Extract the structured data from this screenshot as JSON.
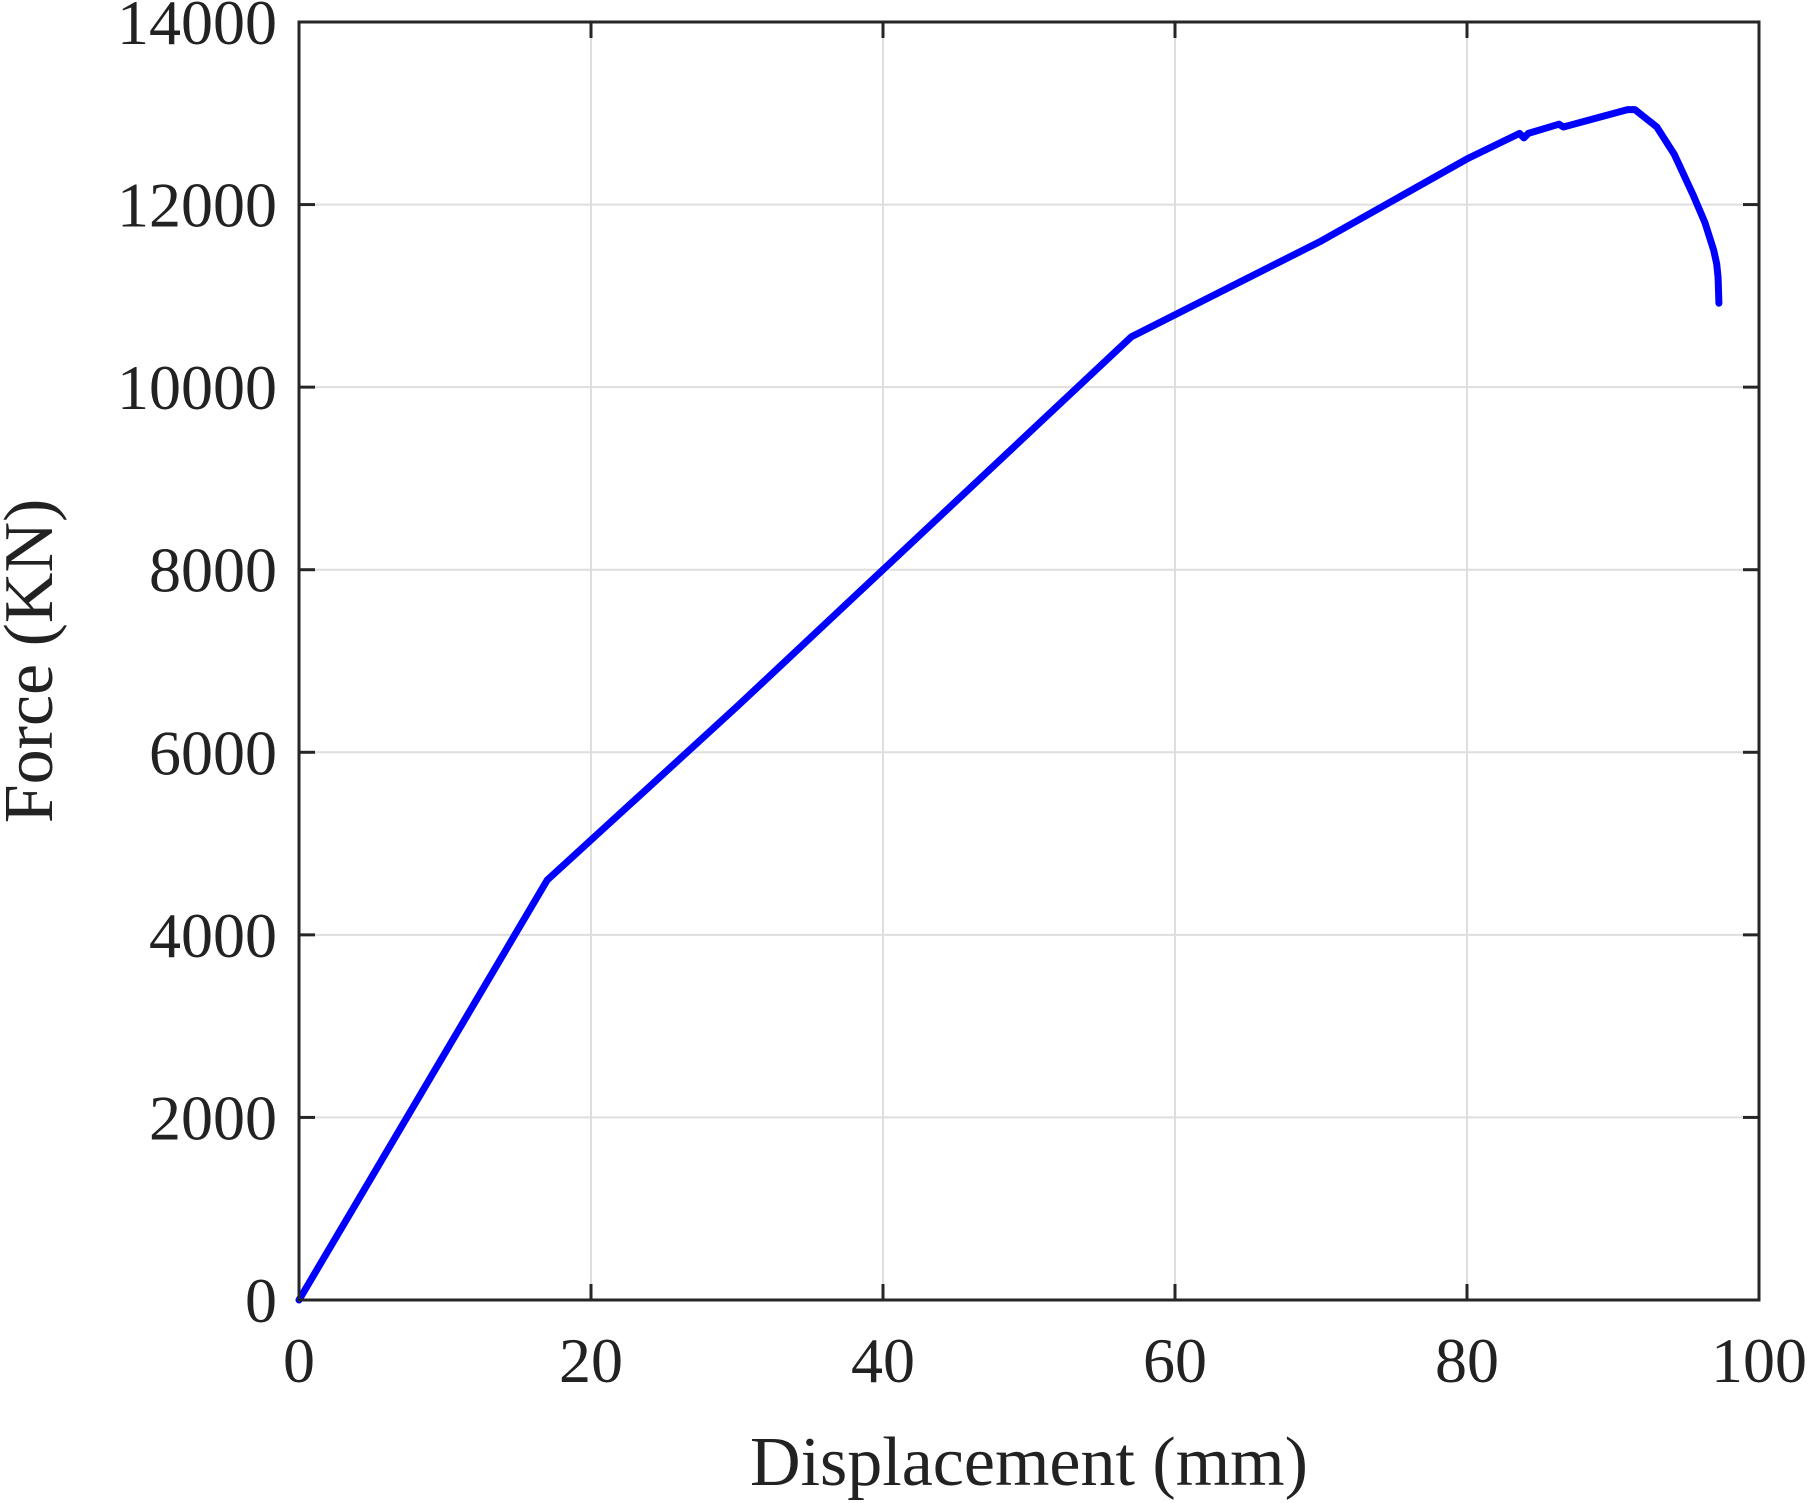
{
  "chart_data": {
    "type": "line",
    "title": "",
    "xlabel": "Displacement (mm)",
    "ylabel": "Force (KN)",
    "xlim": [
      0,
      100
    ],
    "ylim": [
      0,
      14000
    ],
    "xticks": [
      "0",
      "20",
      "40",
      "60",
      "80",
      "100"
    ],
    "yticks": [
      "0",
      "2000",
      "4000",
      "6000",
      "8000",
      "10000",
      "12000",
      "14000"
    ],
    "grid": true,
    "legend": "none",
    "colors": {
      "line": "#0000ff",
      "axes": "#262626",
      "grid": "#dedede"
    },
    "series": [
      {
        "x": [
          0,
          17,
          30,
          40,
          57,
          70,
          80,
          83.6,
          83.9,
          84.2,
          86.3,
          86.6,
          91.0,
          91.5,
          93.0,
          94.2,
          95.5,
          96.3,
          96.9,
          97.1,
          97.2,
          97.25
        ],
        "y": [
          0,
          4600,
          6500,
          8000,
          10550,
          11600,
          12500,
          12780,
          12730,
          12780,
          12880,
          12850,
          13040,
          13040,
          12850,
          12550,
          12100,
          11800,
          11500,
          11350,
          11200,
          10920
        ]
      }
    ]
  }
}
